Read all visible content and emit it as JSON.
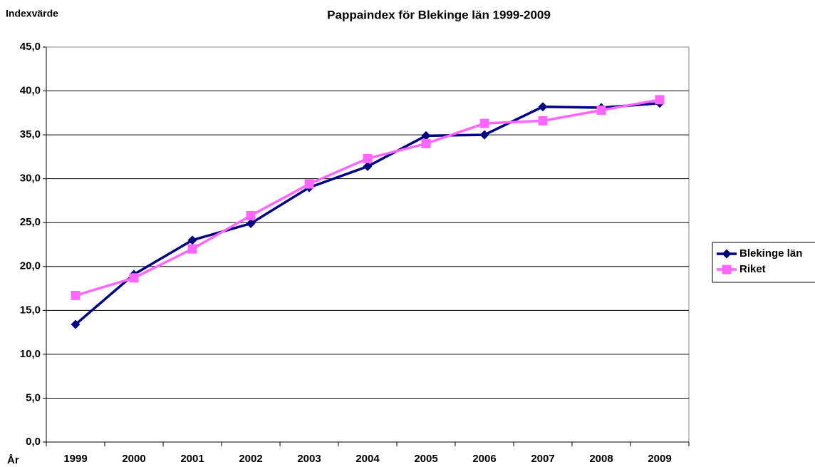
{
  "chart_data": {
    "type": "line",
    "title": "Pappaindex för Blekinge län 1999-2009",
    "y_label": "Indexvärde",
    "x_label": "År",
    "categories": [
      "1999",
      "2000",
      "2001",
      "2002",
      "2003",
      "2004",
      "2005",
      "2006",
      "2007",
      "2008",
      "2009"
    ],
    "series": [
      {
        "name": "Blekinge län",
        "color": "#000080",
        "marker": "diamond",
        "values": [
          13.4,
          19.1,
          23.0,
          24.9,
          29.0,
          31.4,
          34.9,
          35.0,
          38.2,
          38.1,
          38.6
        ]
      },
      {
        "name": "Riket",
        "color": "#ff66ff",
        "marker": "square",
        "values": [
          16.7,
          18.7,
          22.0,
          25.8,
          29.4,
          32.3,
          34.0,
          36.3,
          36.6,
          37.8,
          39.0
        ]
      }
    ],
    "ylim": [
      0,
      45
    ],
    "yticks": [
      {
        "value": 0,
        "label": "0,0"
      },
      {
        "value": 5,
        "label": "5,0"
      },
      {
        "value": 10,
        "label": "10,0"
      },
      {
        "value": 15,
        "label": "15,0"
      },
      {
        "value": 20,
        "label": "20,0"
      },
      {
        "value": 25,
        "label": "25,0"
      },
      {
        "value": 30,
        "label": "30,0"
      },
      {
        "value": 35,
        "label": "35,0"
      },
      {
        "value": 40,
        "label": "40,0"
      },
      {
        "value": 45,
        "label": "45,0"
      }
    ],
    "grid": true,
    "legend": "right"
  }
}
